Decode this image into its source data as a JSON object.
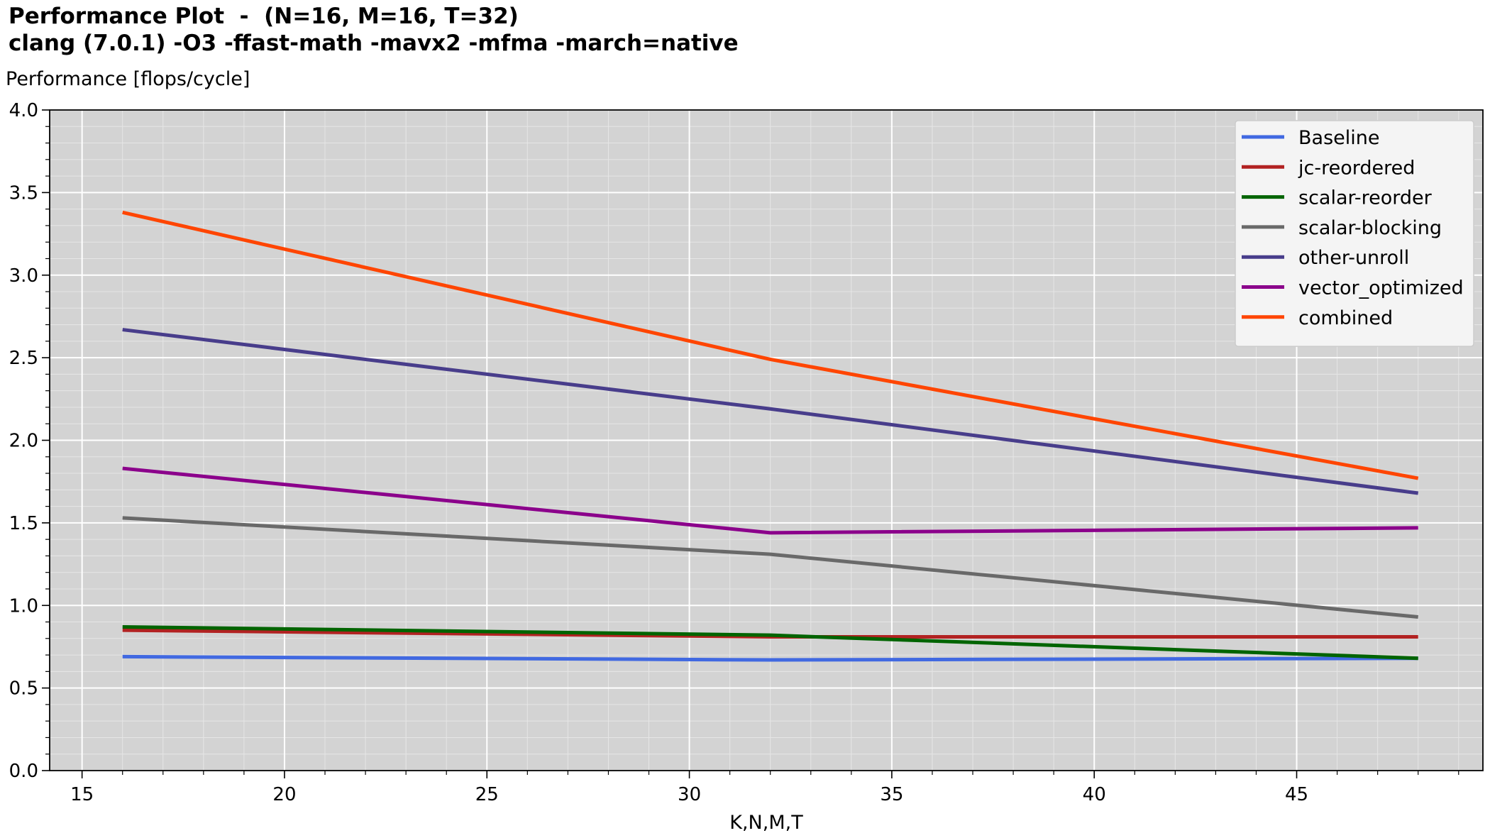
{
  "header": {
    "title_line1": "Performance Plot  -  (N=16, M=16, T=32)",
    "title_line2": "clang (7.0.1) -O3 -ffast-math -mavx2 -mfma -march=native",
    "ylabel": "Performance [flops/cycle]"
  },
  "chart_data": {
    "type": "line",
    "title": "Performance Plot  -  (N=16, M=16, T=32)",
    "subtitle": "clang (7.0.1) -O3 -ffast-math -mavx2 -mfma -march=native",
    "xlabel": "K,N,M,T",
    "ylabel": "Performance [flops/cycle]",
    "xlim": [
      14.2,
      49.6
    ],
    "ylim": [
      0.0,
      4.0
    ],
    "xticks": [
      15,
      20,
      25,
      30,
      35,
      40,
      45
    ],
    "yticks": [
      0.0,
      0.5,
      1.0,
      1.5,
      2.0,
      2.5,
      3.0,
      3.5,
      4.0
    ],
    "grid": true,
    "background": "#d3d3d3",
    "legend_position": "top-right",
    "x": [
      16,
      32,
      48
    ],
    "series": [
      {
        "name": "Baseline",
        "color": "#4169e1",
        "values": [
          0.69,
          0.67,
          0.68
        ]
      },
      {
        "name": "jc-reordered",
        "color": "#b22222",
        "values": [
          0.85,
          0.81,
          0.81
        ]
      },
      {
        "name": "scalar-reorder",
        "color": "#006400",
        "values": [
          0.87,
          0.82,
          0.68
        ]
      },
      {
        "name": "scalar-blocking",
        "color": "#696969",
        "values": [
          1.53,
          1.31,
          0.93
        ]
      },
      {
        "name": "other-unroll",
        "color": "#483d8b",
        "values": [
          2.67,
          2.19,
          1.68
        ]
      },
      {
        "name": "vector_optimized",
        "color": "#8b008b",
        "values": [
          1.83,
          1.44,
          1.47
        ]
      },
      {
        "name": "combined",
        "color": "#ff4500",
        "values": [
          3.38,
          2.49,
          1.77
        ]
      }
    ]
  }
}
